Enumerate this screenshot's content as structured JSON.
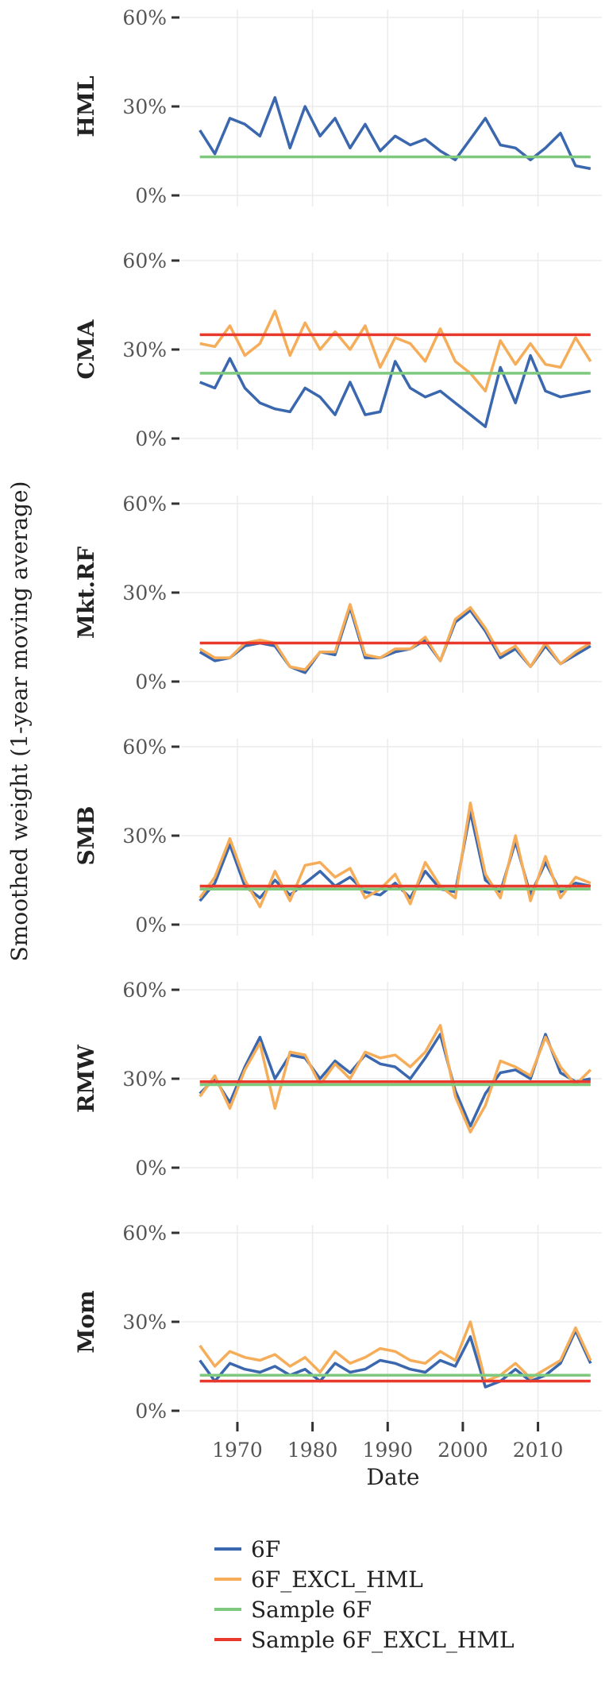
{
  "chart_data": {
    "type": "line",
    "xlabel": "Date",
    "ylabel": "Smoothed weight (1-year moving average)",
    "x_ticks": [
      "1970",
      "1980",
      "1990",
      "2000",
      "2010"
    ],
    "y_ticks": [
      "0%",
      "30%",
      "60%"
    ],
    "xlim": [
      1962.5,
      2018.5
    ],
    "ylim": [
      0,
      60
    ],
    "grid": true,
    "legend_position": "bottom",
    "colors": {
      "6F": "#3a67ae",
      "6F_EXCL_HML": "#f6ad5a",
      "Sample 6F": "#7fc97f",
      "Sample 6F_EXCL_HML": "#e8392c"
    },
    "legend": [
      "6F",
      "6F_EXCL_HML",
      "Sample 6F",
      "Sample 6F_EXCL_HML"
    ],
    "x": [
      1965,
      1967,
      1969,
      1971,
      1973,
      1975,
      1977,
      1979,
      1981,
      1983,
      1985,
      1987,
      1989,
      1991,
      1993,
      1995,
      1997,
      1999,
      2001,
      2003,
      2005,
      2007,
      2009,
      2011,
      2013,
      2015,
      2017
    ],
    "panels": [
      {
        "label": "HML",
        "sample": {
          "6F": 13,
          "6F_EXCL_HML": null
        },
        "series": [
          {
            "name": "6F",
            "values": [
              22,
              14,
              26,
              24,
              20,
              33,
              16,
              30,
              20,
              26,
              16,
              24,
              15,
              20,
              17,
              19,
              15,
              12,
              19,
              26,
              17,
              16,
              12,
              16,
              21,
              10,
              9
            ]
          }
        ]
      },
      {
        "label": "CMA",
        "sample": {
          "6F": 22,
          "6F_EXCL_HML": 35
        },
        "series": [
          {
            "name": "6F",
            "values": [
              19,
              17,
              27,
              17,
              12,
              10,
              9,
              17,
              14,
              8,
              19,
              8,
              9,
              26,
              17,
              14,
              16,
              12,
              8,
              4,
              24,
              12,
              28,
              16,
              14,
              15,
              16
            ]
          },
          {
            "name": "6F_EXCL_HML",
            "values": [
              32,
              31,
              38,
              28,
              32,
              43,
              28,
              39,
              30,
              36,
              30,
              38,
              24,
              34,
              32,
              26,
              37,
              26,
              22,
              16,
              33,
              25,
              32,
              25,
              24,
              34,
              26
            ]
          }
        ]
      },
      {
        "label": "Mkt.RF",
        "sample": {
          "6F": null,
          "6F_EXCL_HML": 13
        },
        "series": [
          {
            "name": "6F",
            "values": [
              10,
              7,
              8,
              12,
              13,
              12,
              5,
              3,
              10,
              9,
              25,
              8,
              8,
              10,
              11,
              14,
              7,
              20,
              24,
              17,
              8,
              11,
              5,
              12,
              6,
              9,
              12
            ]
          },
          {
            "name": "6F_EXCL_HML",
            "values": [
              11,
              8,
              8,
              13,
              14,
              13,
              5,
              4,
              10,
              10,
              26,
              9,
              8,
              11,
              11,
              15,
              7,
              21,
              25,
              18,
              9,
              12,
              5,
              13,
              6,
              10,
              13
            ]
          }
        ]
      },
      {
        "label": "SMB",
        "sample": {
          "6F": 12,
          "6F_EXCL_HML": 13
        },
        "series": [
          {
            "name": "6F",
            "values": [
              8,
              14,
              27,
              13,
              9,
              15,
              10,
              14,
              18,
              13,
              16,
              11,
              10,
              14,
              9,
              18,
              12,
              11,
              38,
              15,
              11,
              28,
              10,
              21,
              11,
              14,
              13
            ]
          },
          {
            "name": "6F_EXCL_HML",
            "values": [
              9,
              16,
              29,
              15,
              6,
              18,
              8,
              20,
              21,
              16,
              19,
              9,
              12,
              17,
              7,
              21,
              13,
              9,
              41,
              17,
              9,
              30,
              8,
              23,
              9,
              16,
              14
            ]
          }
        ]
      },
      {
        "label": "RMW",
        "sample": {
          "6F": 28,
          "6F_EXCL_HML": 29
        },
        "series": [
          {
            "name": "6F",
            "values": [
              25,
              30,
              22,
              34,
              44,
              30,
              38,
              37,
              30,
              36,
              32,
              38,
              35,
              34,
              30,
              37,
              45,
              26,
              14,
              25,
              32,
              33,
              30,
              45,
              32,
              29,
              30
            ]
          },
          {
            "name": "6F_EXCL_HML",
            "values": [
              24,
              31,
              20,
              33,
              42,
              20,
              39,
              38,
              28,
              35,
              30,
              39,
              37,
              38,
              34,
              39,
              48,
              24,
              12,
              21,
              36,
              34,
              31,
              44,
              34,
              28,
              33
            ]
          }
        ]
      },
      {
        "label": "Mom",
        "sample": {
          "6F": 12,
          "6F_EXCL_HML": 10
        },
        "series": [
          {
            "name": "6F",
            "values": [
              17,
              10,
              16,
              14,
              13,
              15,
              12,
              14,
              10,
              16,
              13,
              14,
              17,
              16,
              14,
              13,
              17,
              15,
              25,
              8,
              10,
              14,
              10,
              12,
              16,
              27,
              16
            ]
          },
          {
            "name": "6F_EXCL_HML",
            "values": [
              22,
              15,
              20,
              18,
              17,
              19,
              15,
              18,
              13,
              20,
              16,
              18,
              21,
              20,
              17,
              16,
              20,
              17,
              30,
              10,
              12,
              16,
              11,
              14,
              17,
              28,
              17
            ]
          }
        ]
      }
    ]
  }
}
